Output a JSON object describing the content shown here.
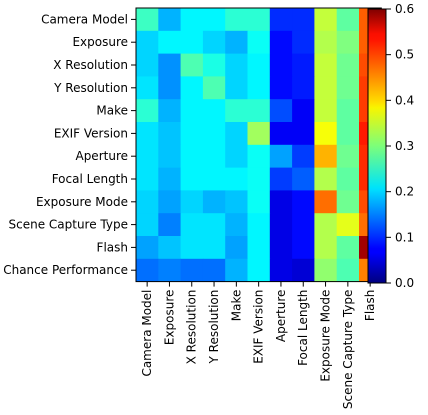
{
  "chart_data": {
    "type": "heatmap",
    "title": "",
    "xlabel": "",
    "ylabel": "",
    "rows": [
      "Camera Model",
      "Exposure",
      "X Resolution",
      "Y Resolution",
      "Make",
      "EXIF Version",
      "Aperture",
      "Focal Length",
      "Exposure Mode",
      "Scene Capture Type",
      "Flash",
      "Chance Performance"
    ],
    "columns": [
      "Camera Model",
      "Exposure",
      "X Resolution",
      "Y Resolution",
      "Make",
      "EXIF Version",
      "Aperture",
      "Focal Length",
      "Exposure Mode",
      "Scene Capture Type",
      "Flash"
    ],
    "values": [
      [
        0.26,
        0.18,
        0.22,
        0.22,
        0.25,
        0.25,
        0.1,
        0.1,
        0.34,
        0.28,
        0.47
      ],
      [
        0.2,
        0.22,
        0.22,
        0.2,
        0.18,
        0.23,
        0.08,
        0.1,
        0.33,
        0.3,
        0.47
      ],
      [
        0.2,
        0.16,
        0.27,
        0.24,
        0.2,
        0.22,
        0.08,
        0.09,
        0.34,
        0.29,
        0.48
      ],
      [
        0.21,
        0.16,
        0.22,
        0.27,
        0.2,
        0.22,
        0.08,
        0.09,
        0.34,
        0.29,
        0.49
      ],
      [
        0.25,
        0.18,
        0.22,
        0.22,
        0.25,
        0.25,
        0.12,
        0.07,
        0.34,
        0.28,
        0.49
      ],
      [
        0.21,
        0.19,
        0.22,
        0.22,
        0.2,
        0.32,
        0.07,
        0.07,
        0.37,
        0.28,
        0.51
      ],
      [
        0.21,
        0.19,
        0.22,
        0.22,
        0.2,
        0.23,
        0.17,
        0.11,
        0.42,
        0.29,
        0.5
      ],
      [
        0.21,
        0.18,
        0.22,
        0.22,
        0.22,
        0.23,
        0.11,
        0.13,
        0.33,
        0.28,
        0.5
      ],
      [
        0.2,
        0.17,
        0.2,
        0.18,
        0.19,
        0.23,
        0.06,
        0.08,
        0.46,
        0.29,
        0.48
      ],
      [
        0.2,
        0.15,
        0.21,
        0.21,
        0.18,
        0.22,
        0.06,
        0.08,
        0.33,
        0.36,
        0.46
      ],
      [
        0.17,
        0.19,
        0.21,
        0.21,
        0.17,
        0.22,
        0.06,
        0.08,
        0.33,
        0.28,
        0.58
      ],
      [
        0.14,
        0.15,
        0.14,
        0.14,
        0.18,
        0.22,
        0.06,
        0.05,
        0.31,
        0.27,
        0.45
      ]
    ],
    "colorbar": {
      "min": 0.0,
      "max": 0.6,
      "ticks": [
        "0.0",
        "0.1",
        "0.2",
        "0.3",
        "0.4",
        "0.5",
        "0.6"
      ],
      "colormap": "jet"
    },
    "grid": false,
    "legend": "colorbar-right"
  }
}
